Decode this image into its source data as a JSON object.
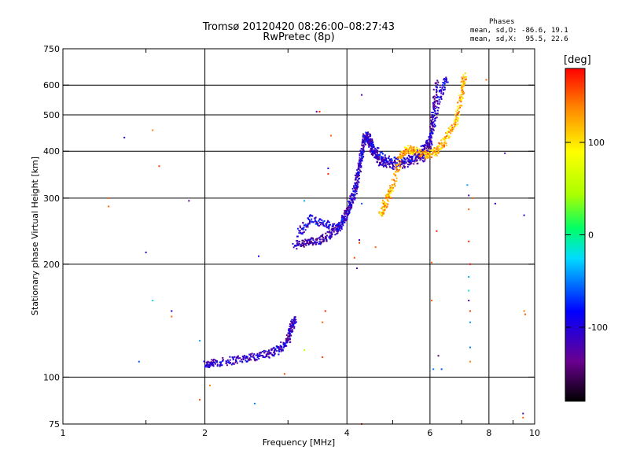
{
  "chart_data": {
    "type": "scatter",
    "title": "Tromsø 20120420 08:26:00–08:27:43",
    "subtitle": "RwPretec (8p)",
    "xlabel": "Frequency [MHz]",
    "ylabel": "Stationary phase Virtual Height [km]",
    "x_scale": "log",
    "y_scale": "log",
    "xlim": [
      1,
      10
    ],
    "ylim": [
      75,
      750
    ],
    "x_ticks": [
      1,
      2,
      4,
      6,
      8,
      10
    ],
    "y_ticks": [
      75,
      100,
      200,
      300,
      400,
      500,
      600,
      750
    ],
    "grid": true,
    "phases": {
      "title": "Phases",
      "o_mode": "mean, sd,O: -86.6, 19.1",
      "x_mode": "mean, sd,X:  95.5, 22.6"
    },
    "colorbar": {
      "label": "[deg]",
      "ticks": [
        100,
        0,
        -100
      ],
      "range": [
        -180,
        180
      ]
    },
    "series": [
      {
        "mode": "O",
        "phase_deg": -110,
        "trace": [
          [
            2.0,
            108
          ],
          [
            2.1,
            109
          ],
          [
            2.3,
            111
          ],
          [
            2.5,
            113
          ],
          [
            2.7,
            115
          ],
          [
            2.85,
            118
          ],
          [
            3.0,
            125
          ],
          [
            3.05,
            135
          ],
          [
            3.1,
            143
          ]
        ]
      },
      {
        "mode": "O",
        "phase_deg": -120,
        "trace": [
          [
            3.1,
            225
          ],
          [
            3.3,
            228
          ],
          [
            3.5,
            232
          ],
          [
            3.7,
            240
          ],
          [
            3.9,
            255
          ],
          [
            4.0,
            275
          ],
          [
            4.15,
            310
          ],
          [
            4.25,
            360
          ],
          [
            4.35,
            430
          ],
          [
            4.45,
            440
          ],
          [
            4.55,
            400
          ],
          [
            4.7,
            375
          ],
          [
            5.0,
            365
          ],
          [
            5.4,
            370
          ],
          [
            5.8,
            385
          ],
          [
            6.0,
            420
          ],
          [
            6.1,
            500
          ],
          [
            6.2,
            620
          ]
        ]
      },
      {
        "mode": "O",
        "phase_deg": -100,
        "trace": [
          [
            3.15,
            240
          ],
          [
            3.35,
            265
          ],
          [
            3.6,
            255
          ],
          [
            3.85,
            250
          ],
          [
            4.05,
            280
          ],
          [
            4.2,
            330
          ],
          [
            4.35,
            440
          ],
          [
            4.5,
            415
          ],
          [
            4.8,
            380
          ],
          [
            5.2,
            378
          ],
          [
            5.6,
            385
          ],
          [
            6.0,
            430
          ],
          [
            6.3,
            560
          ],
          [
            6.5,
            630
          ]
        ]
      },
      {
        "mode": "X",
        "phase_deg": 120,
        "trace": [
          [
            4.7,
            270
          ],
          [
            4.85,
            295
          ],
          [
            5.0,
            320
          ],
          [
            5.2,
            390
          ],
          [
            5.4,
            405
          ],
          [
            5.6,
            400
          ],
          [
            5.9,
            390
          ],
          [
            6.2,
            400
          ],
          [
            6.5,
            430
          ],
          [
            6.8,
            480
          ],
          [
            7.0,
            560
          ],
          [
            7.1,
            640
          ]
        ]
      }
    ],
    "scatter_points": [
      [
        1.35,
        435,
        -110
      ],
      [
        1.55,
        455,
        140
      ],
      [
        1.6,
        365,
        160
      ],
      [
        1.85,
        295,
        -130
      ],
      [
        1.25,
        285,
        150
      ],
      [
        1.5,
        215,
        -110
      ],
      [
        1.55,
        160,
        -20
      ],
      [
        1.45,
        110,
        -60
      ],
      [
        1.7,
        150,
        -90
      ],
      [
        1.7,
        145,
        150
      ],
      [
        1.25,
        300,
        155
      ],
      [
        1.95,
        125,
        -40
      ],
      [
        2.05,
        95,
        140
      ],
      [
        1.95,
        87,
        160
      ],
      [
        2.6,
        210,
        -100
      ],
      [
        2.55,
        85,
        -50
      ],
      [
        2.95,
        102,
        160
      ],
      [
        3.25,
        295,
        -40
      ],
      [
        3.25,
        118,
        50
      ],
      [
        3.45,
        510,
        -130
      ],
      [
        3.5,
        510,
        170
      ],
      [
        3.7,
        440,
        150
      ],
      [
        3.65,
        360,
        -100
      ],
      [
        3.65,
        348,
        170
      ],
      [
        3.6,
        150,
        170
      ],
      [
        3.55,
        140,
        150
      ],
      [
        3.55,
        113,
        160
      ],
      [
        4.15,
        208,
        160
      ],
      [
        4.2,
        195,
        -120
      ],
      [
        4.3,
        565,
        -120
      ],
      [
        4.25,
        232,
        -120
      ],
      [
        4.25,
        228,
        160
      ],
      [
        4.3,
        75,
        160
      ],
      [
        4.6,
        222,
        150
      ],
      [
        4.3,
        290,
        -60
      ],
      [
        6.2,
        245,
        170
      ],
      [
        6.05,
        202,
        150
      ],
      [
        6.05,
        160,
        150
      ],
      [
        6.35,
        105,
        -60
      ],
      [
        6.25,
        114,
        -150
      ],
      [
        7.2,
        325,
        -40
      ],
      [
        7.25,
        305,
        -120
      ],
      [
        7.25,
        280,
        150
      ],
      [
        7.25,
        230,
        170
      ],
      [
        7.3,
        200,
        180
      ],
      [
        7.25,
        185,
        -40
      ],
      [
        7.25,
        170,
        -20
      ],
      [
        7.25,
        160,
        -120
      ],
      [
        7.3,
        150,
        160
      ],
      [
        7.3,
        140,
        -40
      ],
      [
        7.3,
        120,
        -50
      ],
      [
        7.3,
        110,
        140
      ],
      [
        7.9,
        620,
        150
      ],
      [
        8.25,
        290,
        -90
      ],
      [
        8.65,
        395,
        -120
      ],
      [
        9.45,
        80,
        -120
      ],
      [
        9.45,
        78,
        150
      ],
      [
        9.5,
        270,
        -110
      ],
      [
        9.55,
        147,
        150
      ],
      [
        9.5,
        150,
        140
      ],
      [
        7.4,
        300,
        150
      ],
      [
        6.1,
        105,
        -50
      ]
    ]
  }
}
